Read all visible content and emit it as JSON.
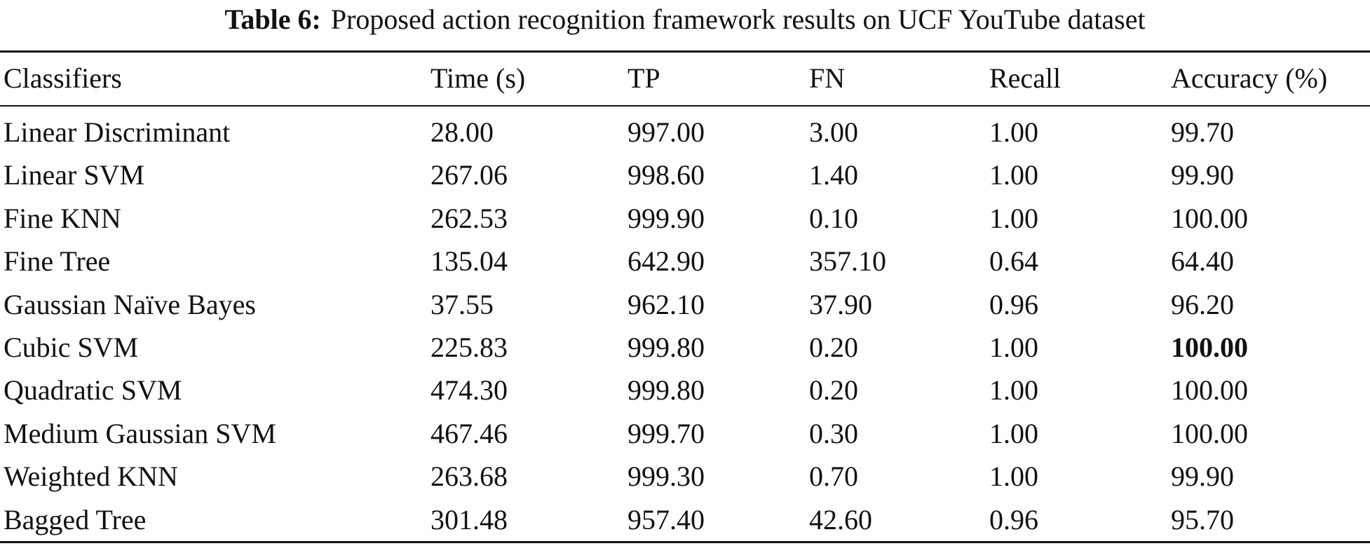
{
  "table": {
    "caption_label": "Table 6:",
    "caption_text": "Proposed action recognition framework results on UCF YouTube dataset",
    "header": [
      "Classifiers",
      "Time (s)",
      "TP",
      "FN",
      "Recall",
      "Accuracy (%)"
    ],
    "rows": [
      [
        "Linear Discriminant",
        "28.00",
        "997.00",
        "3.00",
        "1.00",
        "99.70"
      ],
      [
        "Linear SVM",
        "267.06",
        "998.60",
        "1.40",
        "1.00",
        "99.90"
      ],
      [
        "Fine KNN",
        "262.53",
        "999.90",
        "0.10",
        "1.00",
        "100.00"
      ],
      [
        "Fine Tree",
        "135.04",
        "642.90",
        "357.10",
        "0.64",
        "64.40"
      ],
      [
        "Gaussian Naïve Bayes",
        "37.55",
        "962.10",
        "37.90",
        "0.96",
        "96.20"
      ],
      [
        "Cubic SVM",
        "225.83",
        "999.80",
        "0.20",
        "1.00",
        "100.00"
      ],
      [
        "Quadratic SVM",
        "474.30",
        "999.80",
        "0.20",
        "1.00",
        "100.00"
      ],
      [
        "Medium Gaussian SVM",
        "467.46",
        "999.70",
        "0.30",
        "1.00",
        "100.00"
      ],
      [
        "Weighted KNN",
        "263.68",
        "999.30",
        "0.70",
        "1.00",
        "99.90"
      ],
      [
        "Bagged Tree",
        "301.48",
        "957.40",
        "42.60",
        "0.96",
        "95.70"
      ]
    ],
    "bold_cells": [
      [
        5,
        5
      ]
    ]
  }
}
